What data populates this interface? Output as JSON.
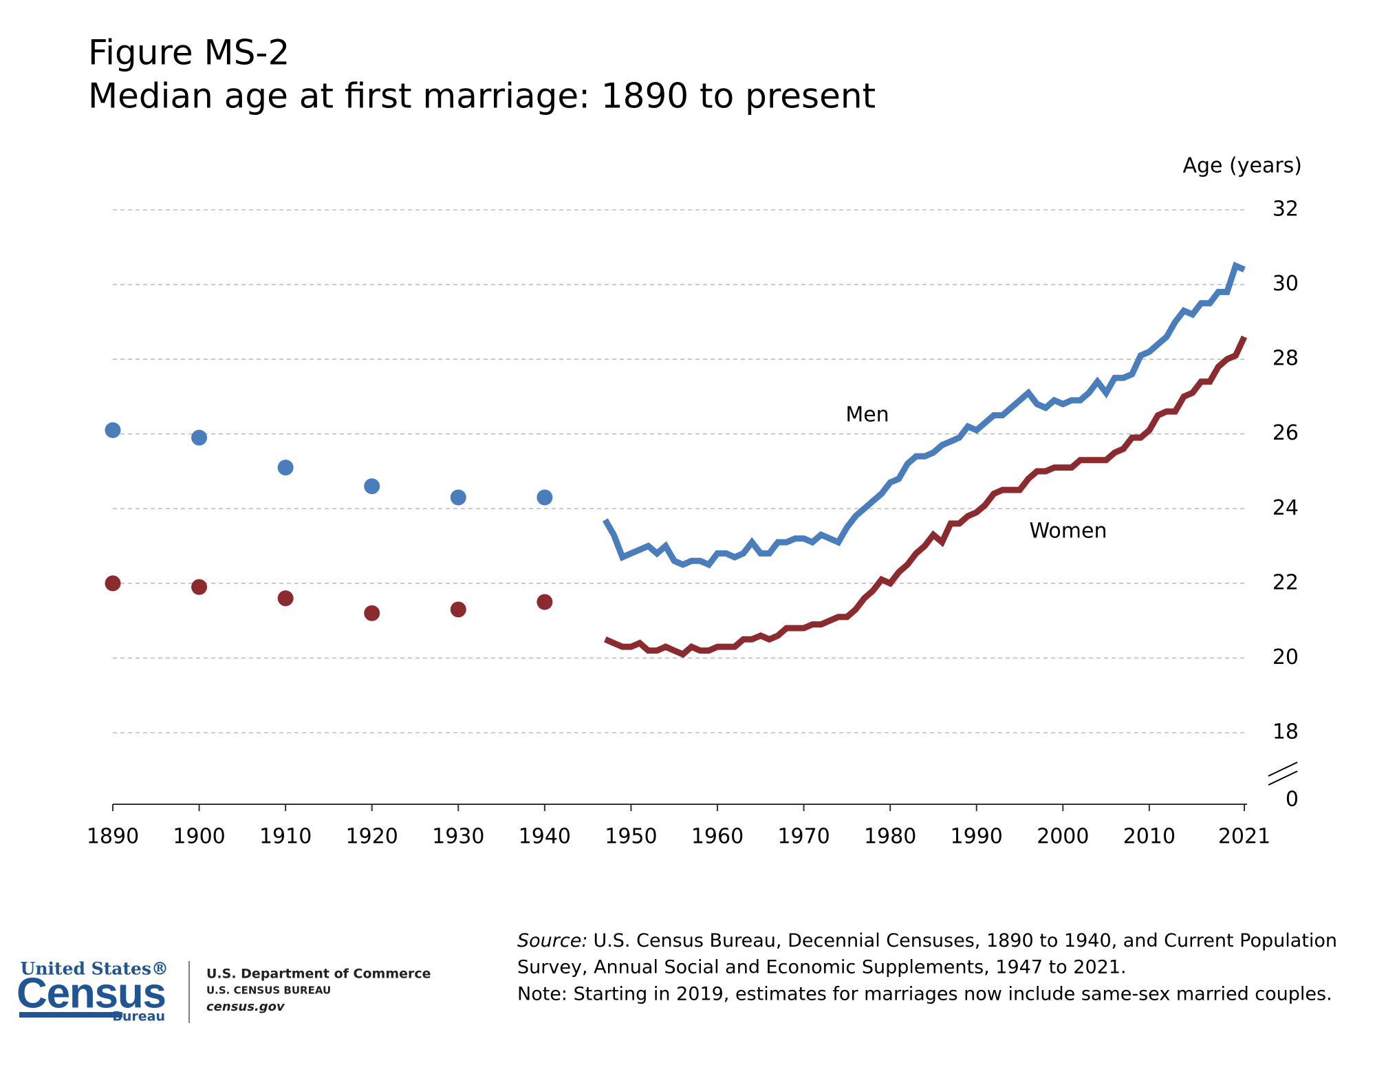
{
  "chart_data": {
    "type": "line",
    "title": "Figure MS-2",
    "subtitle": "Median age at first marriage: 1890 to present",
    "ylabel": "Age (years)",
    "xlim": [
      1890,
      2021
    ],
    "xticks": [
      1890,
      1900,
      1910,
      1920,
      1930,
      1940,
      1950,
      1960,
      1970,
      1980,
      1990,
      2000,
      2010,
      2021
    ],
    "ylim": [
      0,
      32
    ],
    "yticks": [
      0,
      18,
      20,
      22,
      24,
      26,
      28,
      30,
      32
    ],
    "axis_break": true,
    "grid": true,
    "series": [
      {
        "name": "Men",
        "color": "#4a7dbb",
        "points": {
          "x": [
            1890,
            1900,
            1910,
            1920,
            1930,
            1940
          ],
          "values": [
            26.1,
            25.9,
            25.1,
            24.6,
            24.3,
            24.3
          ]
        },
        "line": {
          "x": [
            1947,
            1948,
            1949,
            1950,
            1951,
            1952,
            1953,
            1954,
            1955,
            1956,
            1957,
            1958,
            1959,
            1960,
            1961,
            1962,
            1963,
            1964,
            1965,
            1966,
            1967,
            1968,
            1969,
            1970,
            1971,
            1972,
            1973,
            1974,
            1975,
            1976,
            1977,
            1978,
            1979,
            1980,
            1981,
            1982,
            1983,
            1984,
            1985,
            1986,
            1987,
            1988,
            1989,
            1990,
            1991,
            1992,
            1993,
            1994,
            1995,
            1996,
            1997,
            1998,
            1999,
            2000,
            2001,
            2002,
            2003,
            2004,
            2005,
            2006,
            2007,
            2008,
            2009,
            2010,
            2011,
            2012,
            2013,
            2014,
            2015,
            2016,
            2017,
            2018,
            2019,
            2020,
            2021
          ],
          "values": [
            23.7,
            23.3,
            22.7,
            22.8,
            22.9,
            23.0,
            22.8,
            23.0,
            22.6,
            22.5,
            22.6,
            22.6,
            22.5,
            22.8,
            22.8,
            22.7,
            22.8,
            23.1,
            22.8,
            22.8,
            23.1,
            23.1,
            23.2,
            23.2,
            23.1,
            23.3,
            23.2,
            23.1,
            23.5,
            23.8,
            24.0,
            24.2,
            24.4,
            24.7,
            24.8,
            25.2,
            25.4,
            25.4,
            25.5,
            25.7,
            25.8,
            25.9,
            26.2,
            26.1,
            26.3,
            26.5,
            26.5,
            26.7,
            26.9,
            27.1,
            26.8,
            26.7,
            26.9,
            26.8,
            26.9,
            26.9,
            27.1,
            27.4,
            27.1,
            27.5,
            27.5,
            27.6,
            28.1,
            28.2,
            28.4,
            28.6,
            29.0,
            29.3,
            29.2,
            29.5,
            29.5,
            29.8,
            29.8,
            30.5,
            30.4
          ]
        }
      },
      {
        "name": "Women",
        "color": "#8b2b2f",
        "points": {
          "x": [
            1890,
            1900,
            1910,
            1920,
            1930,
            1940
          ],
          "values": [
            22.0,
            21.9,
            21.6,
            21.2,
            21.3,
            21.5
          ]
        },
        "line": {
          "x": [
            1947,
            1948,
            1949,
            1950,
            1951,
            1952,
            1953,
            1954,
            1955,
            1956,
            1957,
            1958,
            1959,
            1960,
            1961,
            1962,
            1963,
            1964,
            1965,
            1966,
            1967,
            1968,
            1969,
            1970,
            1971,
            1972,
            1973,
            1974,
            1975,
            1976,
            1977,
            1978,
            1979,
            1980,
            1981,
            1982,
            1983,
            1984,
            1985,
            1986,
            1987,
            1988,
            1989,
            1990,
            1991,
            1992,
            1993,
            1994,
            1995,
            1996,
            1997,
            1998,
            1999,
            2000,
            2001,
            2002,
            2003,
            2004,
            2005,
            2006,
            2007,
            2008,
            2009,
            2010,
            2011,
            2012,
            2013,
            2014,
            2015,
            2016,
            2017,
            2018,
            2019,
            2020,
            2021
          ],
          "values": [
            20.5,
            20.4,
            20.3,
            20.3,
            20.4,
            20.2,
            20.2,
            20.3,
            20.2,
            20.1,
            20.3,
            20.2,
            20.2,
            20.3,
            20.3,
            20.3,
            20.5,
            20.5,
            20.6,
            20.5,
            20.6,
            20.8,
            20.8,
            20.8,
            20.9,
            20.9,
            21.0,
            21.1,
            21.1,
            21.3,
            21.6,
            21.8,
            22.1,
            22.0,
            22.3,
            22.5,
            22.8,
            23.0,
            23.3,
            23.1,
            23.6,
            23.6,
            23.8,
            23.9,
            24.1,
            24.4,
            24.5,
            24.5,
            24.5,
            24.8,
            25.0,
            25.0,
            25.1,
            25.1,
            25.1,
            25.3,
            25.3,
            25.3,
            25.3,
            25.5,
            25.6,
            25.9,
            25.9,
            26.1,
            26.5,
            26.6,
            26.6,
            27.0,
            27.1,
            27.4,
            27.4,
            27.8,
            28.0,
            28.1,
            28.6
          ]
        }
      }
    ],
    "footer": {
      "source_label": "Source:",
      "source_text": "U.S. Census Bureau, Decennial Censuses, 1890 to 1940, and Current Population",
      "source_text_2": "Survey, Annual Social and Economic Supplements, 1947 to 2021.",
      "note": "Note: Starting in 2019, estimates for marriages now include same-sex married couples.",
      "logo_top": "United States®",
      "logo_main": "Census",
      "logo_bottom": "Bureau",
      "dept": "U.S. Department of Commerce",
      "bureau": "U.S. CENSUS BUREAU",
      "site": "census.gov"
    }
  }
}
